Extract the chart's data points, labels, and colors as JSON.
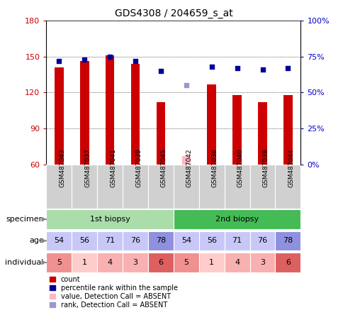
{
  "title": "GDS4308 / 204659_s_at",
  "samples": [
    "GSM487043",
    "GSM487037",
    "GSM487041",
    "GSM487039",
    "GSM487045",
    "GSM487042",
    "GSM487036",
    "GSM487040",
    "GSM487038",
    "GSM487044"
  ],
  "count_values": [
    141,
    146,
    151,
    144,
    112,
    null,
    127,
    118,
    112,
    118
  ],
  "count_absent": [
    null,
    null,
    null,
    null,
    null,
    67,
    null,
    null,
    null,
    null
  ],
  "percentile_values": [
    72,
    73,
    75,
    72,
    65,
    null,
    68,
    67,
    66,
    67
  ],
  "percentile_absent": [
    null,
    null,
    null,
    null,
    null,
    55,
    null,
    null,
    null,
    null
  ],
  "ylim_left": [
    60,
    180
  ],
  "ylim_right": [
    0,
    100
  ],
  "yticks_left": [
    60,
    90,
    120,
    150,
    180
  ],
  "yticks_right": [
    0,
    25,
    50,
    75,
    100
  ],
  "ytick_labels_right": [
    "0%",
    "25%",
    "50%",
    "75%",
    "100%"
  ],
  "specimen_groups": [
    {
      "label": "1st biopsy",
      "indices": [
        0,
        1,
        2,
        3,
        4
      ],
      "color": "#aaddaa"
    },
    {
      "label": "2nd biopsy",
      "indices": [
        5,
        6,
        7,
        8,
        9
      ],
      "color": "#44bb55"
    }
  ],
  "age_values": [
    54,
    56,
    71,
    76,
    78,
    54,
    56,
    71,
    76,
    78
  ],
  "individual_values": [
    5,
    1,
    4,
    3,
    6,
    5,
    1,
    4,
    3,
    6
  ],
  "age_colors": [
    "#c8c8f8",
    "#c8c8f8",
    "#c8c8f8",
    "#c8c8f8",
    "#9090e0",
    "#c8c8f8",
    "#c8c8f8",
    "#c8c8f8",
    "#c8c8f8",
    "#9090e0"
  ],
  "individual_colors_row": [
    "#f09090",
    "#ffcccc",
    "#f8b0b0",
    "#f8b0b0",
    "#dd6060",
    "#f09090",
    "#ffcccc",
    "#f8b0b0",
    "#f8b0b0",
    "#dd6060"
  ],
  "bar_color": "#cc0000",
  "absent_bar_color": "#ffb6c1",
  "dot_color": "#000099",
  "absent_dot_color": "#9999cc",
  "bg_color": "#ffffff",
  "label_color_left": "#cc0000",
  "label_color_right": "#0000cc",
  "bar_width": 0.35,
  "dot_size": 25,
  "sample_bg": "#d0d0d0",
  "legend_items": [
    {
      "color": "#cc0000",
      "label": "count"
    },
    {
      "color": "#000099",
      "label": "percentile rank within the sample"
    },
    {
      "color": "#ffb6c1",
      "label": "value, Detection Call = ABSENT"
    },
    {
      "color": "#9999cc",
      "label": "rank, Detection Call = ABSENT"
    }
  ]
}
